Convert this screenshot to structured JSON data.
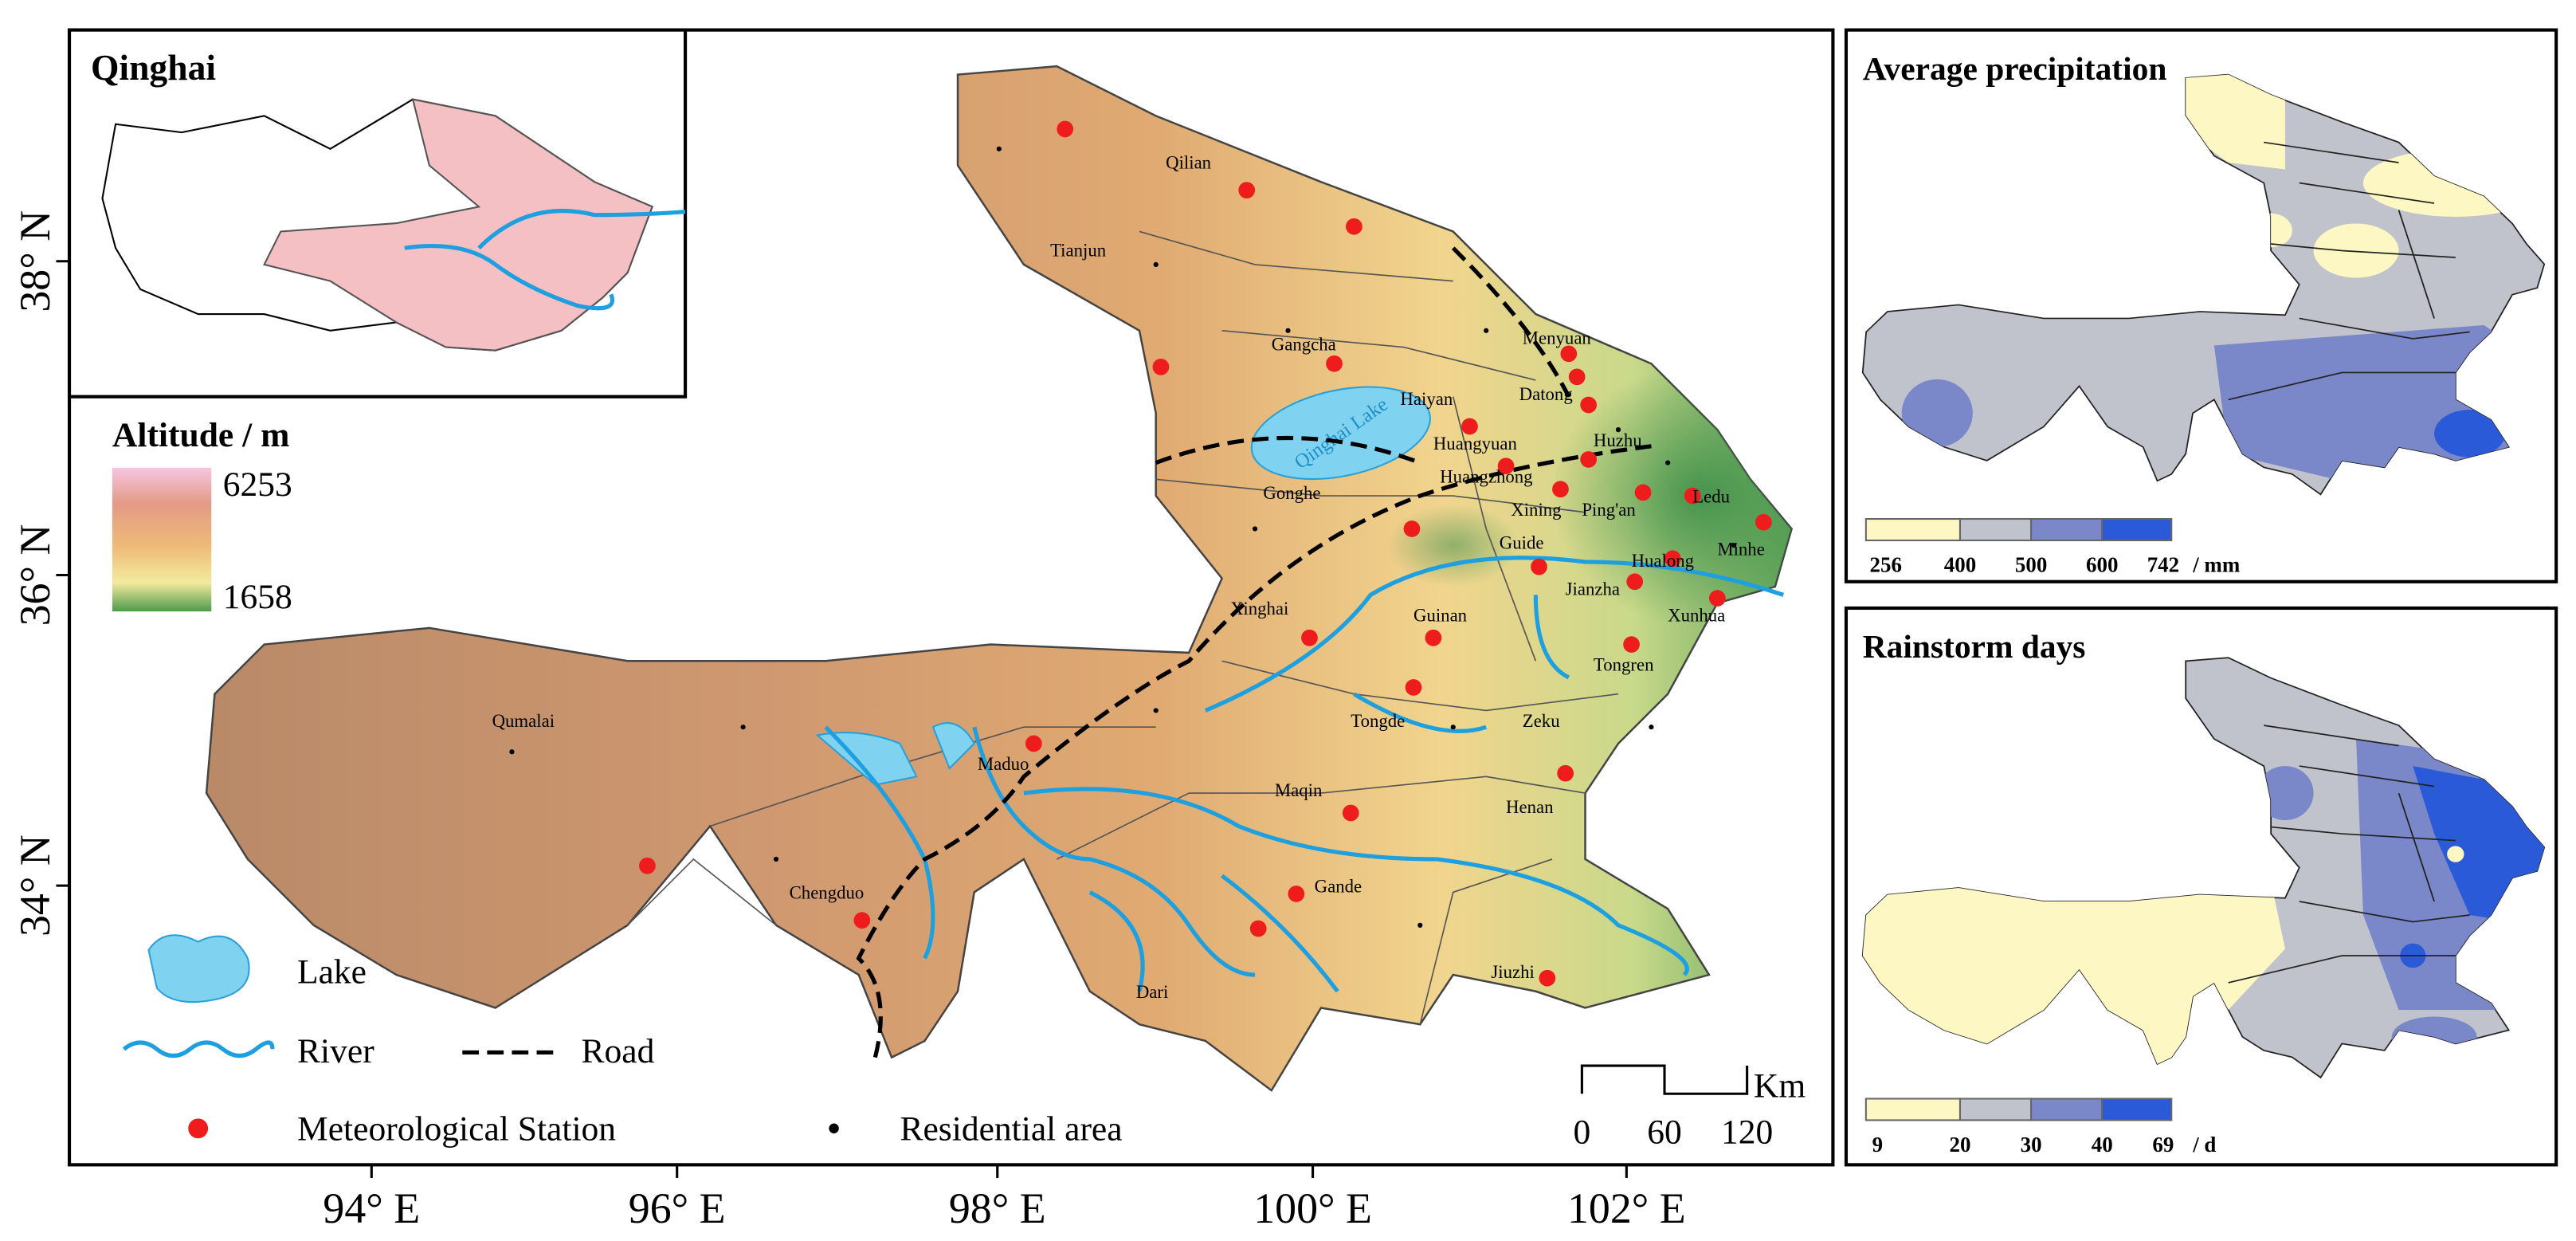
{
  "main_map": {
    "inset_title": "Qinghai",
    "altitude_legend": {
      "title": "Altitude / m",
      "max": 6253,
      "min": 1658
    },
    "lat_labels": [
      "38° N",
      "36° N",
      "34° N"
    ],
    "lon_labels": [
      "94° E",
      "96° E",
      "98° E",
      "100° E",
      "102° E"
    ],
    "lake_label": "Qinghai Lake",
    "places": [
      "Qilian",
      "Tianjun",
      "Gangcha",
      "Menyuan",
      "Haiyan",
      "Datong",
      "Huangyuan",
      "Huzhu",
      "Huangzhong",
      "Xining",
      "Ping'an",
      "Ledu",
      "Gonghe",
      "Guide",
      "Hualong",
      "Minhe",
      "Jianzha",
      "Xunhua",
      "Guinan",
      "Xinghai",
      "Tongren",
      "Tongde",
      "Zeku",
      "Qumalai",
      "Maduo",
      "Maqin",
      "Henan",
      "Chengduo",
      "Gande",
      "Jiuzhi",
      "Dari"
    ],
    "legend": {
      "lake": "Lake",
      "river": "River",
      "road": "Road",
      "station": "Meteorological Station",
      "residential": "Residential area"
    },
    "scale_bar": {
      "unit": "Km",
      "ticks": [
        0,
        60,
        120
      ]
    }
  },
  "precipitation_map": {
    "title": "Average precipitation",
    "breaks": [
      256,
      400,
      500,
      600,
      742
    ],
    "unit": "/ mm"
  },
  "rainstorm_map": {
    "title": "Rainstorm days",
    "breaks": [
      9,
      20,
      30,
      40,
      69
    ],
    "unit": "/ d"
  }
}
